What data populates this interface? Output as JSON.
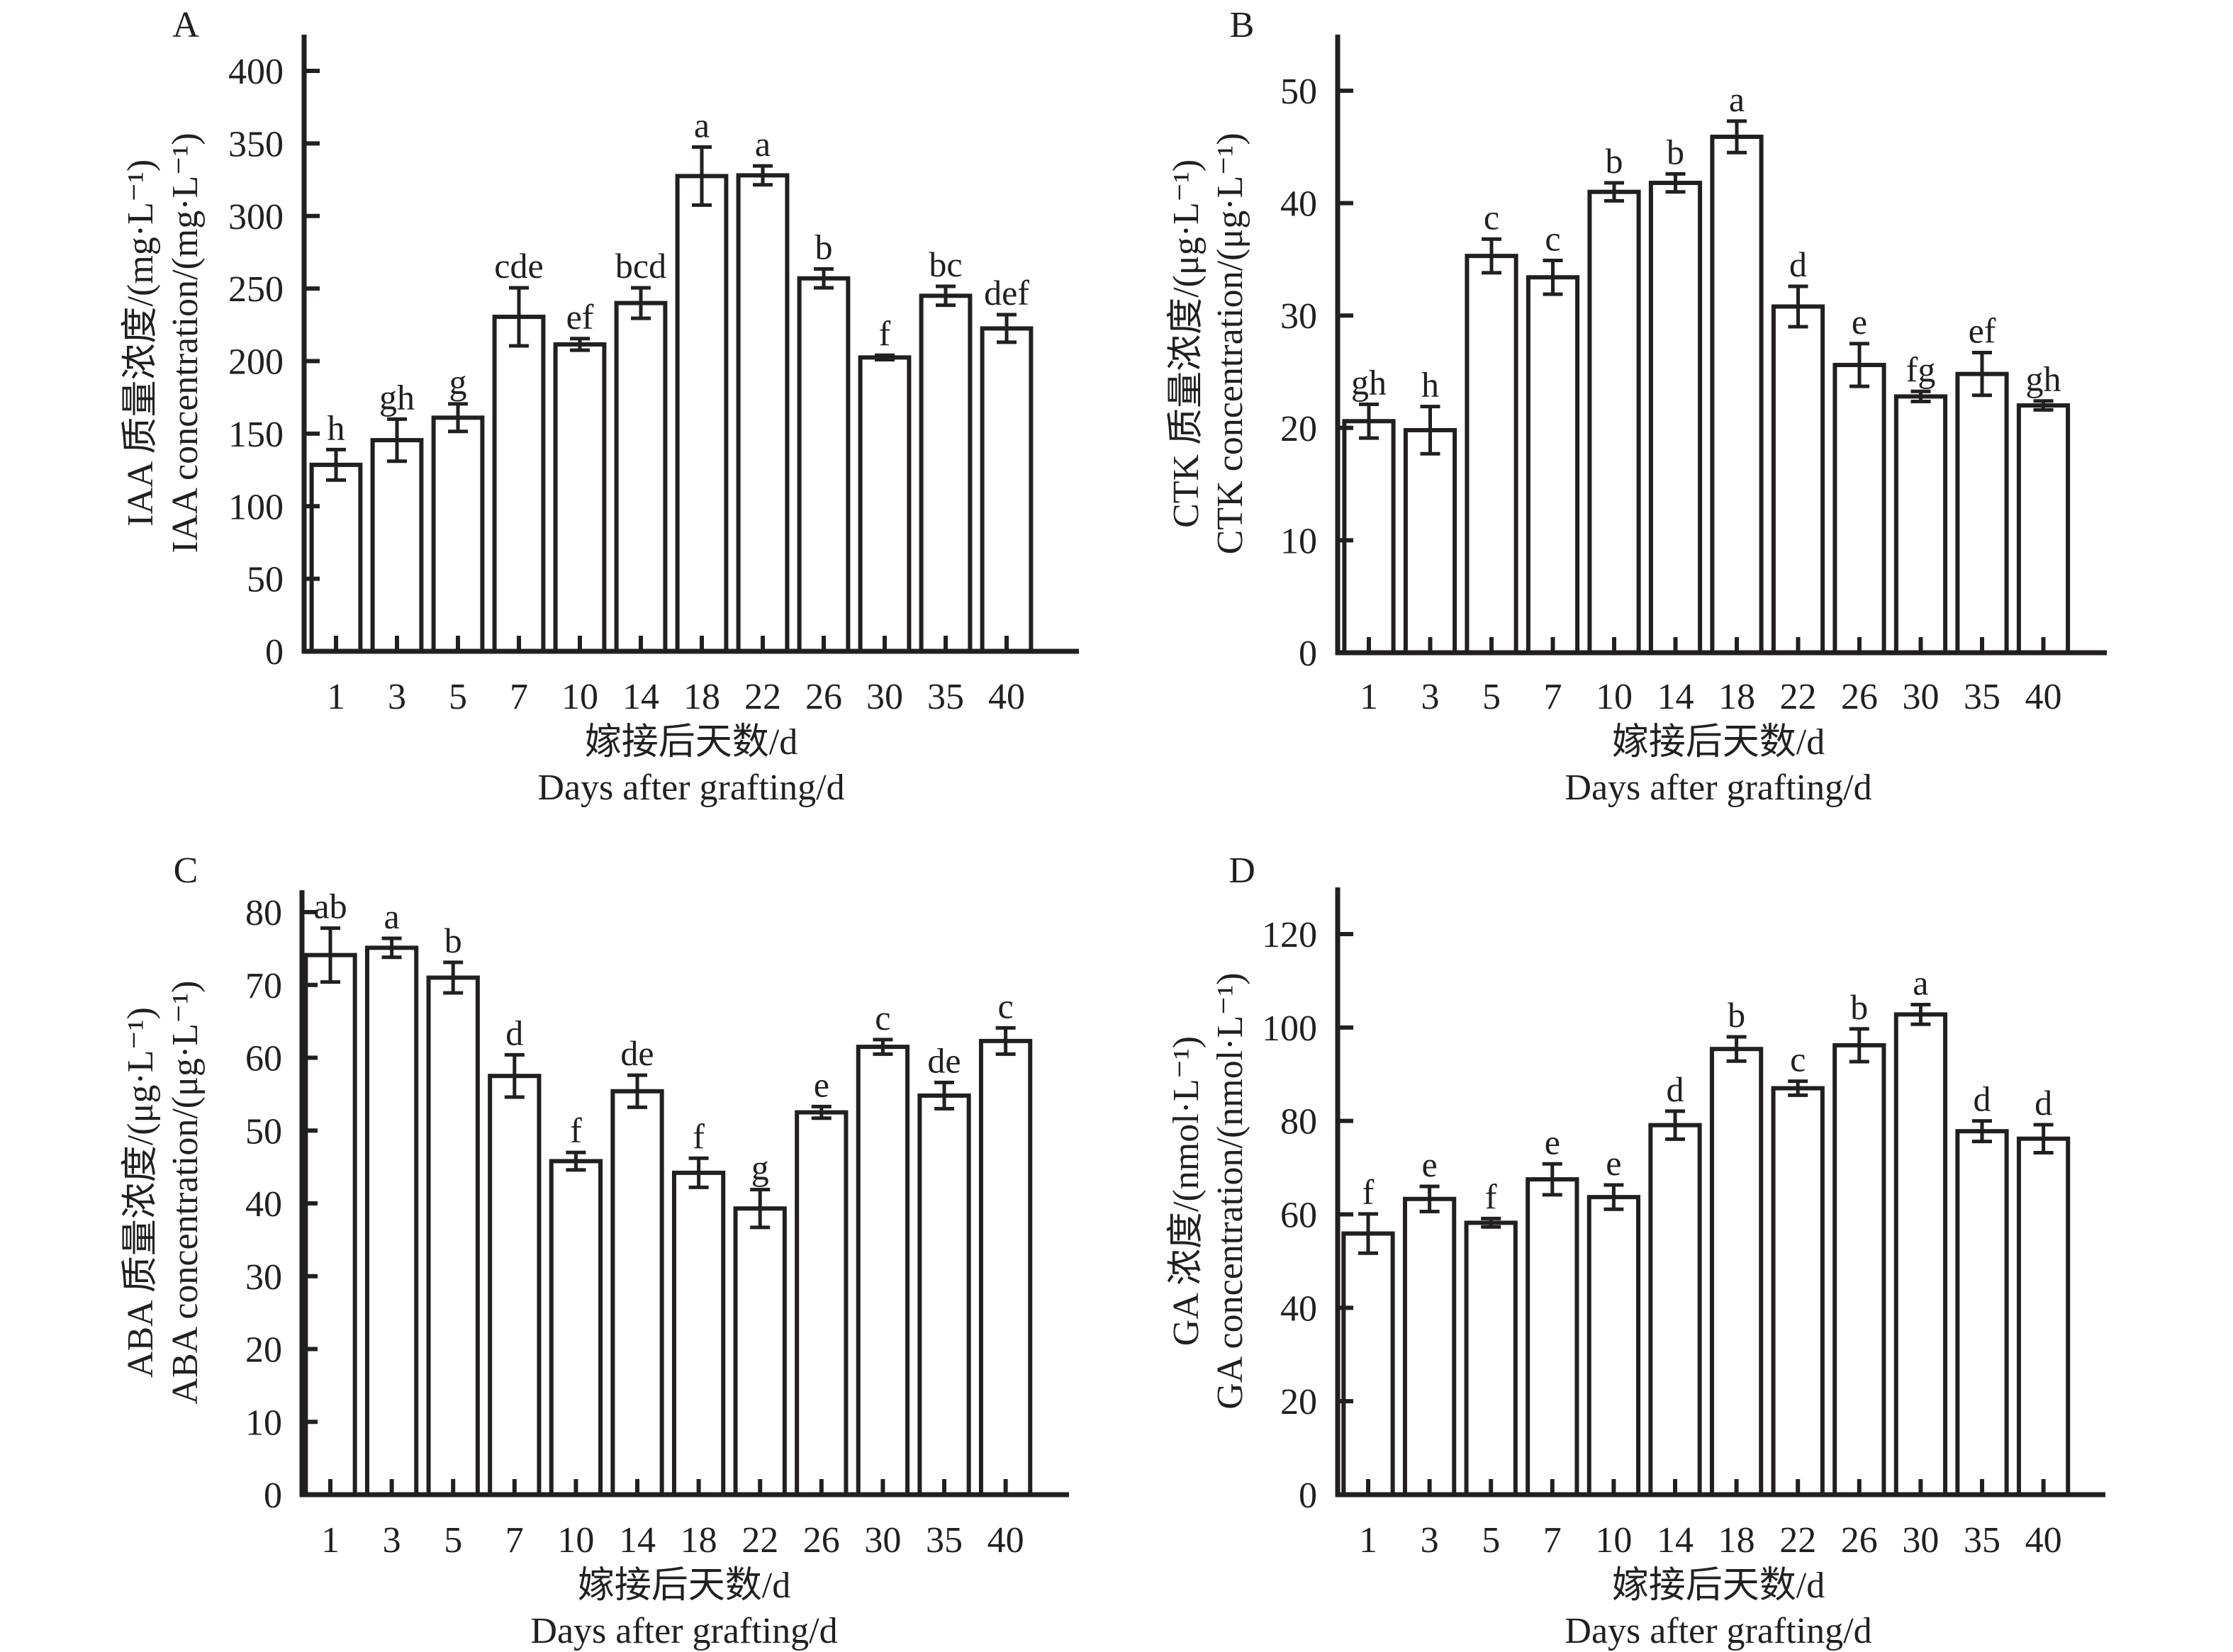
{
  "chart_data": [
    {
      "type": "bar",
      "panel": "A",
      "title": "",
      "categories": [
        "1",
        "3",
        "5",
        "7",
        "10",
        "14",
        "18",
        "22",
        "26",
        "30",
        "35",
        "40"
      ],
      "values": [
        128.5,
        145.5,
        161,
        230.5,
        211.5,
        240,
        327.5,
        328,
        257,
        202.5,
        245,
        222.5
      ],
      "error": [
        10.5,
        14.5,
        9.5,
        20,
        4,
        10.5,
        20,
        6.5,
        6.5,
        1.5,
        6.5,
        9.5
      ],
      "significance": [
        "h",
        "gh",
        "g",
        "cde",
        "ef",
        "bcd",
        "a",
        "a",
        "b",
        "f",
        "bc",
        "def"
      ],
      "xlabel_cn": "嫁接后天数/d",
      "xlabel_en": "Days after grafting/d",
      "ylabel_cn": "IAA 质量浓度/(mg·L⁻¹)",
      "ylabel_en": "IAA concentration/(mg·L⁻¹)",
      "ylim": [
        0,
        400
      ],
      "yticks": [
        0,
        50,
        100,
        150,
        200,
        250,
        300,
        350,
        400
      ],
      "ymax_axis": 425,
      "grid": false
    },
    {
      "type": "bar",
      "panel": "B",
      "title": "",
      "categories": [
        "1",
        "3",
        "5",
        "7",
        "10",
        "14",
        "18",
        "22",
        "26",
        "30",
        "35",
        "40"
      ],
      "values": [
        20.6,
        19.8,
        35.3,
        33.4,
        41.0,
        41.8,
        45.9,
        30.8,
        25.6,
        22.8,
        24.8,
        22.0
      ],
      "error": [
        1.5,
        2.1,
        1.5,
        1.5,
        0.8,
        0.8,
        1.4,
        1.8,
        1.9,
        0.45,
        1.9,
        0.4
      ],
      "significance": [
        "gh",
        "h",
        "c",
        "c",
        "b",
        "b",
        "a",
        "d",
        "e",
        "fg",
        "ef",
        "gh"
      ],
      "xlabel_cn": "嫁接后天数/d",
      "xlabel_en": "Days after grafting/d",
      "ylabel_cn": "CTK 质量浓度/(μg·L⁻¹)",
      "ylabel_en": "CTK concentration/(μg·L⁻¹)",
      "ylim": [
        0,
        50
      ],
      "yticks": [
        0,
        10,
        20,
        30,
        40,
        50
      ],
      "ymax_axis": 55,
      "grid": false
    },
    {
      "type": "bar",
      "panel": "C",
      "title": "",
      "categories": [
        "1",
        "3",
        "5",
        "7",
        "10",
        "14",
        "18",
        "22",
        "26",
        "30",
        "35",
        "40"
      ],
      "values": [
        74.1,
        75.1,
        71.0,
        57.5,
        45.8,
        55.4,
        44.2,
        39.3,
        52.5,
        61.5,
        54.8,
        62.3
      ],
      "error": [
        3.7,
        1.3,
        2.1,
        2.9,
        1.2,
        2.2,
        2.0,
        2.6,
        0.8,
        1.0,
        1.8,
        1.8
      ],
      "significance": [
        "ab",
        "a",
        "b",
        "d",
        "f",
        "de",
        "f",
        "g",
        "e",
        "c",
        "de",
        "c"
      ],
      "xlabel_cn": "嫁接后天数/d",
      "xlabel_en": "Days after grafting/d",
      "ylabel_cn": "ABA 质量浓度/(μg·L⁻¹)",
      "ylabel_en": "ABA concentration/(μg·L⁻¹)",
      "ylim": [
        0,
        80
      ],
      "yticks": [
        0,
        10,
        20,
        30,
        40,
        50,
        60,
        70,
        80
      ],
      "ymax_axis": 83,
      "grid": false
    },
    {
      "type": "bar",
      "panel": "D",
      "title": "",
      "categories": [
        "1",
        "3",
        "5",
        "7",
        "10",
        "14",
        "18",
        "22",
        "26",
        "30",
        "35",
        "40"
      ],
      "values": [
        55.9,
        63.3,
        58.2,
        67.5,
        63.7,
        79.1,
        95.4,
        87.0,
        96.2,
        102.8,
        77.8,
        76.2
      ],
      "error": [
        4.2,
        2.7,
        0.9,
        3.3,
        2.6,
        3.0,
        2.6,
        1.5,
        3.5,
        2.1,
        2.2,
        3.0
      ],
      "significance": [
        "f",
        "e",
        "f",
        "e",
        "e",
        "d",
        "b",
        "c",
        "b",
        "a",
        "d",
        "d"
      ],
      "xlabel_cn": "嫁接后天数/d",
      "xlabel_en": "Days after grafting/d",
      "ylabel_cn": "GA 浓度/(nmol·L⁻¹)",
      "ylabel_en": "GA concentration/(nmol·L⁻¹)",
      "ylim": [
        0,
        120
      ],
      "yticks": [
        0,
        20,
        40,
        60,
        80,
        100,
        120
      ],
      "ymax_axis": 130,
      "grid": false
    }
  ]
}
